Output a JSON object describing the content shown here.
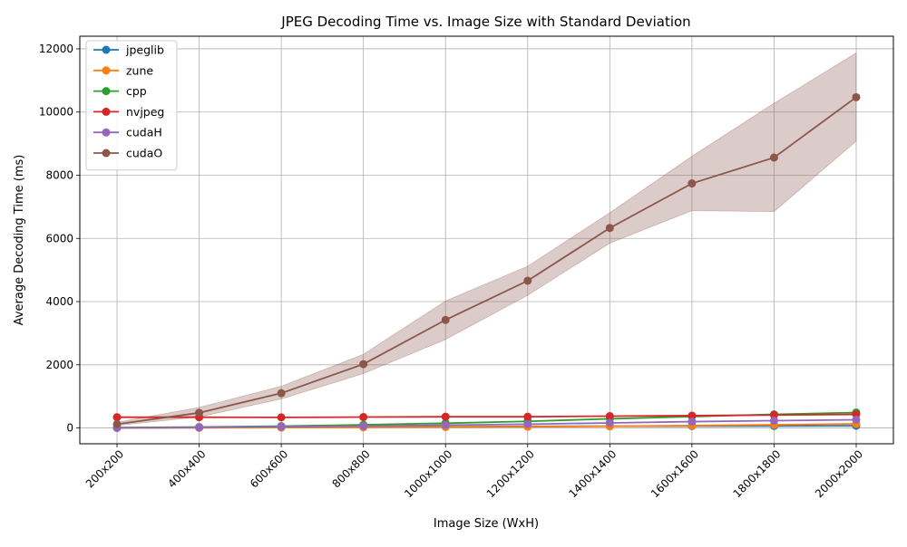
{
  "chart_data": {
    "type": "line",
    "title": "JPEG Decoding Time vs. Image Size with Standard Deviation",
    "xlabel": "Image Size (WxH)",
    "ylabel": "Average Decoding Time (ms)",
    "categories": [
      "200x200",
      "400x400",
      "600x600",
      "800x800",
      "1000x1000",
      "1200x1200",
      "1400x1400",
      "1600x1600",
      "1800x1800",
      "2000x2000"
    ],
    "ylim": [
      -500,
      12400
    ],
    "yticks": [
      0,
      2000,
      4000,
      6000,
      8000,
      10000,
      12000
    ],
    "grid": true,
    "legend_position": "top-left",
    "series": [
      {
        "name": "jpeglib",
        "color": "#1f77b4",
        "values": [
          2,
          8,
          18,
          30,
          40,
          50,
          55,
          60,
          65,
          70
        ]
      },
      {
        "name": "zune",
        "color": "#ff7f0e",
        "values": [
          2,
          6,
          12,
          20,
          30,
          40,
          55,
          75,
          100,
          130
        ]
      },
      {
        "name": "cpp",
        "color": "#2ca02c",
        "values": [
          10,
          30,
          60,
          100,
          150,
          210,
          290,
          360,
          430,
          490
        ]
      },
      {
        "name": "nvjpeg",
        "color": "#d62728",
        "values": [
          340,
          340,
          335,
          345,
          355,
          355,
          375,
          390,
          410,
          430
        ]
      },
      {
        "name": "cudaH",
        "color": "#9467bd",
        "values": [
          5,
          20,
          40,
          60,
          90,
          120,
          160,
          200,
          230,
          260
        ]
      },
      {
        "name": "cudaO",
        "color": "#8c564b",
        "values": [
          120,
          480,
          1100,
          2020,
          3420,
          4660,
          6330,
          7740,
          8560,
          10470
        ],
        "std_low": [
          80,
          350,
          920,
          1720,
          2800,
          4200,
          5850,
          6880,
          6850,
          9080
        ],
        "std_high": [
          180,
          650,
          1320,
          2330,
          4020,
          5120,
          6810,
          8600,
          10280,
          11870
        ]
      }
    ]
  }
}
